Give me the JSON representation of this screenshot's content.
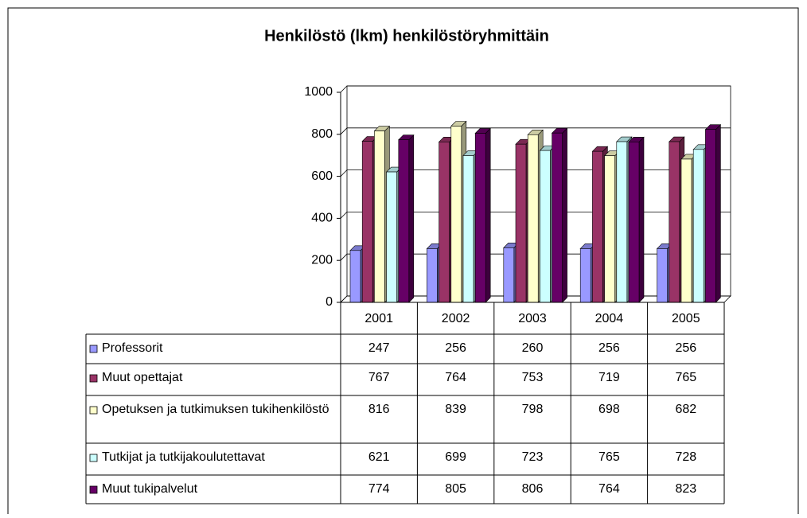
{
  "chart_data": {
    "type": "bar3d",
    "title": "Henkilöstö (lkm) henkilöstöryhmittäin",
    "categories": [
      "2001",
      "2002",
      "2003",
      "2004",
      "2005"
    ],
    "series": [
      {
        "name": "Professorit",
        "color": "#9999ff",
        "values": [
          247,
          256,
          260,
          256,
          256
        ]
      },
      {
        "name": "Muut opettajat",
        "color": "#993366",
        "values": [
          767,
          764,
          753,
          719,
          765
        ]
      },
      {
        "name": "Opetuksen ja tutkimuksen tukihenkilöstö",
        "color": "#ffffcc",
        "values": [
          816,
          839,
          798,
          698,
          682
        ]
      },
      {
        "name": "Tutkijat ja tutkijakoulutettavat",
        "color": "#ccffff",
        "values": [
          621,
          699,
          723,
          765,
          728
        ]
      },
      {
        "name": "Muut tukipalvelut",
        "color": "#660066",
        "values": [
          774,
          805,
          806,
          764,
          823
        ]
      }
    ],
    "ylim": [
      0,
      1000
    ],
    "yticks": [
      0,
      200,
      400,
      600,
      800,
      1000
    ],
    "grid": true,
    "data_table": true
  }
}
